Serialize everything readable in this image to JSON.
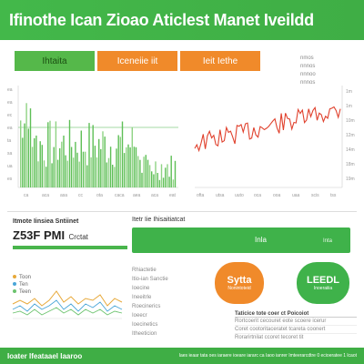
{
  "header": {
    "title": "Ifinothe Ican Zioao Aticlest Manet Iveildd"
  },
  "tabs": [
    {
      "label": "Ihtaita",
      "color": "#55b84a"
    },
    {
      "label": "Iceneiie iit",
      "color": "#f08a2a"
    },
    {
      "label": "Ieit Iethe",
      "color": "#f08a2a"
    }
  ],
  "right_legend": [
    "nmos",
    "nnnos",
    "nnnoo",
    "nnnos"
  ],
  "left_chart": {
    "yticks": [
      "ea",
      "ea",
      "ec",
      "ea",
      "ta",
      "sa",
      "ua",
      "es"
    ],
    "xticks": [
      "ca",
      "aca",
      "asa",
      "cc",
      "ota",
      "caca",
      "aea",
      "aca",
      "eat"
    ]
  },
  "right_chart": {
    "xticks": [
      "ofta",
      "utsa",
      "uuto",
      "oca",
      "ooa",
      "uaa",
      "scis",
      "tss"
    ],
    "yticks": [
      "1m",
      "1m",
      "10m",
      "12m",
      "14m",
      "18m",
      "19m"
    ]
  },
  "stats": {
    "label": "Itmote Iinsiea  Sntiinet",
    "value": "Z53F PMI",
    "value_suffix": "Crctat"
  },
  "green_panel": {
    "title": "Itetr Iie Ihisaitiatcat",
    "bar_label": "Inla",
    "bar_tick": "Inta"
  },
  "bottom_left": {
    "legend": [
      "Toon",
      "Ten",
      "Teen"
    ]
  },
  "list": [
    "Rhiactetie",
    "Itio-ian Sanctie",
    "Ioecine",
    "Ineeitrle",
    "Roecinerics",
    "Ioeecr",
    "Ioecinetics",
    "Itheeticion"
  ],
  "pill_orange": {
    "title": "Sytta",
    "sub": "Nonintoteid"
  },
  "pill_green": {
    "title": "LEEDL",
    "sub": "Inoeraiiia"
  },
  "table_title": "Taticice tote coer ct Poicoiot",
  "table_rows": [
    "Rortcoerit cecouret  eote scoere icerur",
    "Coret cootoritaceratet tcareta coonert",
    "Rorarirtnilat ccoret tecoret tit"
  ],
  "footer": {
    "left": "Ioater  Ifeataael  Iaaroo",
    "right": "Iaes ieaar tata oes iaraere ioeare iararc ca Iaoo ianrer Imteerarcdtre 0 ecioeratee 1 lcaot"
  }
}
